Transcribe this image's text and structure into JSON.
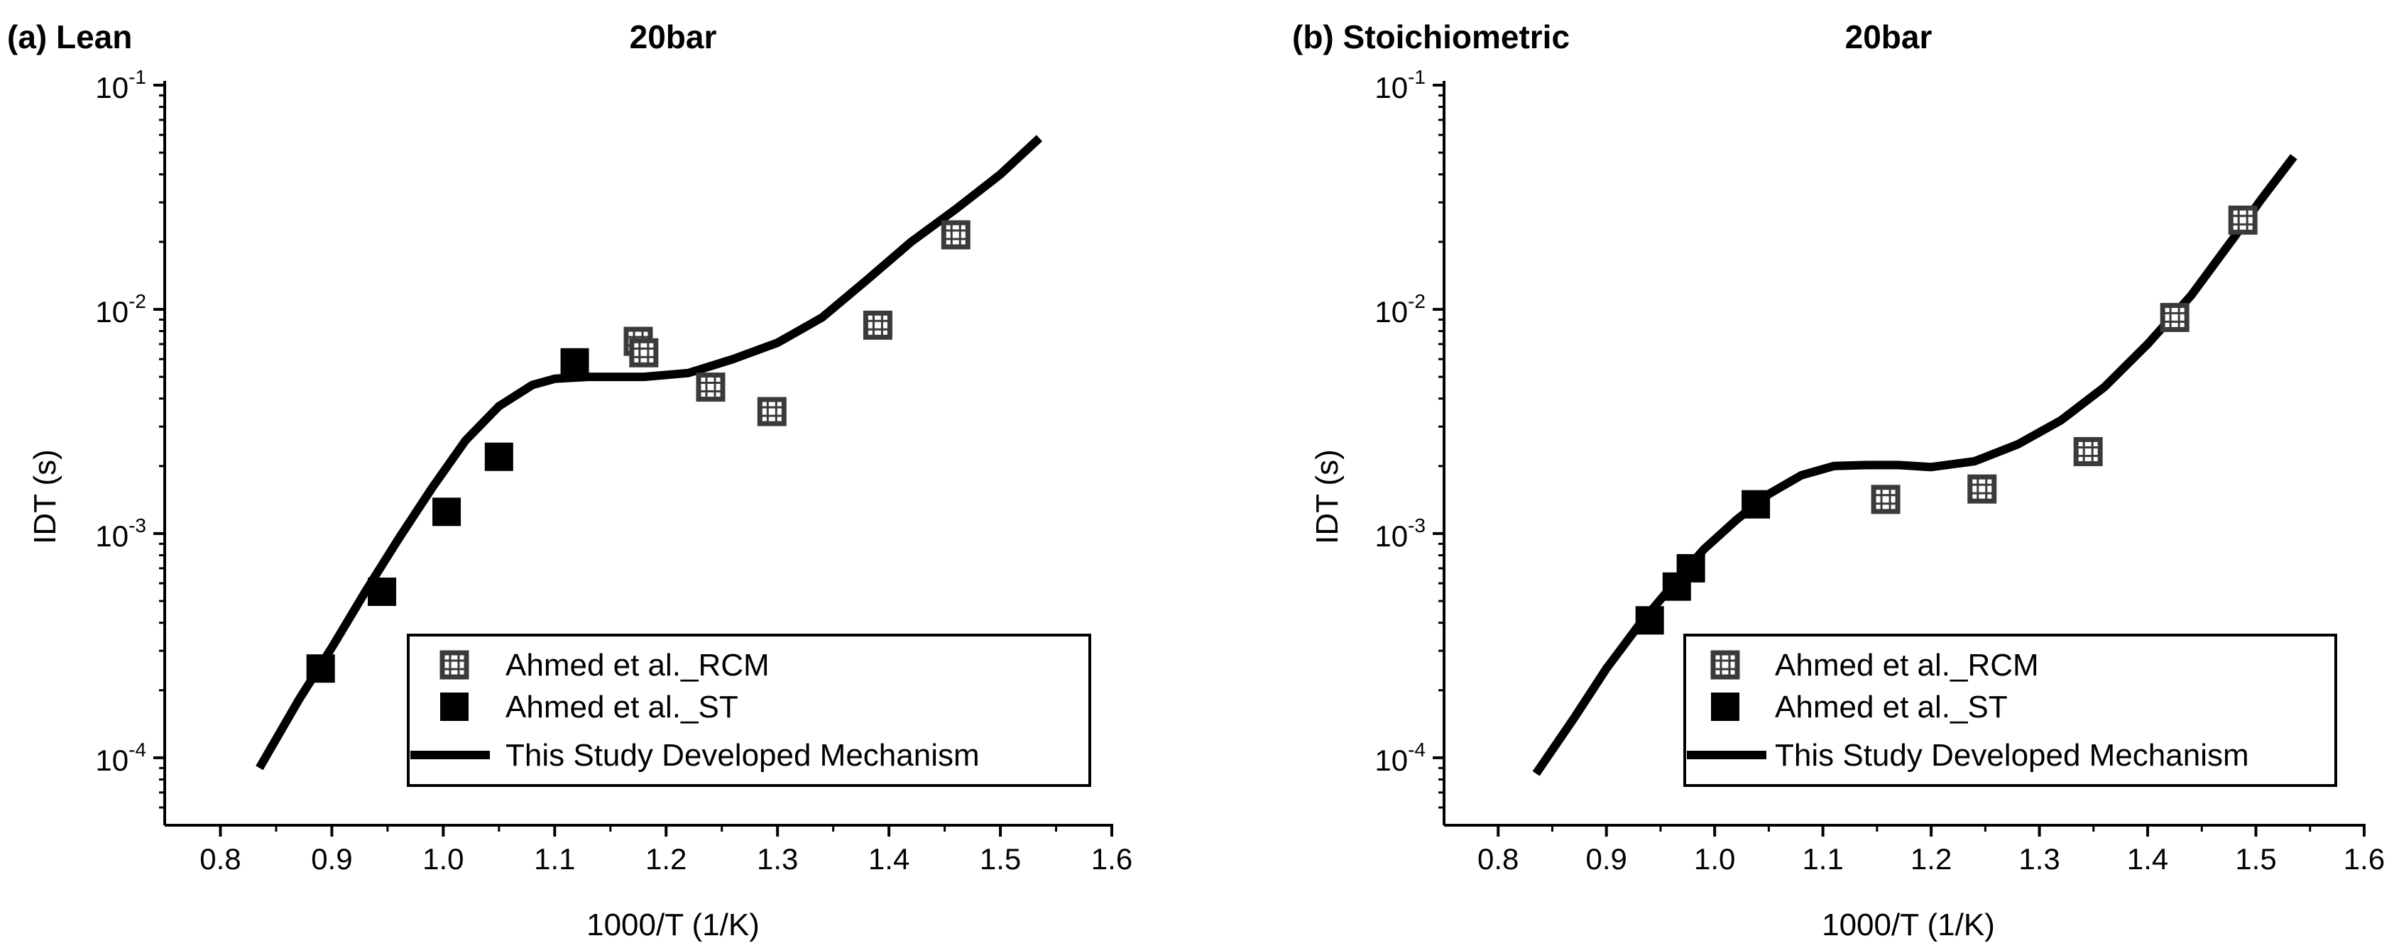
{
  "chart_data": [
    {
      "type": "scatter",
      "panel_label": "(a) Lean",
      "title": "20bar",
      "xlabel": "1000/T (1/K)",
      "ylabel": "IDT (s)",
      "xlim": [
        0.75,
        1.6
      ],
      "ylim": [
        5e-05,
        0.1
      ],
      "yscale": "log",
      "xticks": [
        "0.8",
        "0.9",
        "1.0",
        "1.1",
        "1.2",
        "1.3",
        "1.4",
        "1.5",
        "1.6"
      ],
      "yticks": [
        {
          "base": "10",
          "exp": "-1"
        },
        {
          "base": "10",
          "exp": "-2"
        },
        {
          "base": "10",
          "exp": "-3"
        },
        {
          "base": "10",
          "exp": "-4"
        }
      ],
      "legend_position": "bottom-right",
      "series": [
        {
          "name": "Ahmed et al._RCM",
          "marker": "square-hatched",
          "x": [
            1.175,
            1.18,
            1.24,
            1.295,
            1.39,
            1.46
          ],
          "y": [
            0.0072,
            0.0064,
            0.0045,
            0.0035,
            0.0085,
            0.0215
          ]
        },
        {
          "name": "Ahmed et al._ST",
          "marker": "square-filled",
          "x": [
            0.89,
            0.945,
            1.003,
            1.05,
            1.118
          ],
          "y": [
            0.00025,
            0.00055,
            0.00125,
            0.0022,
            0.0058
          ]
        },
        {
          "name": "This Study Developed Mechanism",
          "marker": "line",
          "x": [
            0.835,
            0.87,
            0.9,
            0.93,
            0.96,
            0.99,
            1.02,
            1.05,
            1.08,
            1.1,
            1.13,
            1.18,
            1.22,
            1.26,
            1.3,
            1.34,
            1.38,
            1.42,
            1.46,
            1.5,
            1.535
          ],
          "y": [
            9e-05,
            0.00018,
            0.00031,
            0.00055,
            0.00095,
            0.0016,
            0.0026,
            0.0037,
            0.0046,
            0.0049,
            0.005,
            0.005,
            0.0052,
            0.006,
            0.0071,
            0.0092,
            0.0135,
            0.02,
            0.028,
            0.04,
            0.058
          ]
        }
      ]
    },
    {
      "type": "scatter",
      "panel_label": "(b) Stoichiometric",
      "title": "20bar",
      "xlabel": "1000/T (1/K)",
      "ylabel": "IDT (s)",
      "xlim": [
        0.75,
        1.6
      ],
      "ylim": [
        5e-05,
        0.1
      ],
      "yscale": "log",
      "xticks": [
        "0.8",
        "0.9",
        "1.0",
        "1.1",
        "1.2",
        "1.3",
        "1.4",
        "1.5",
        "1.6"
      ],
      "yticks": [
        {
          "base": "10",
          "exp": "-1"
        },
        {
          "base": "10",
          "exp": "-2"
        },
        {
          "base": "10",
          "exp": "-3"
        },
        {
          "base": "10",
          "exp": "-4"
        }
      ],
      "legend_position": "bottom-right",
      "series": [
        {
          "name": "Ahmed et al._RCM",
          "marker": "square-hatched",
          "x": [
            1.158,
            1.247,
            1.345,
            1.425,
            1.488
          ],
          "y": [
            0.00142,
            0.00158,
            0.00232,
            0.0092,
            0.025
          ]
        },
        {
          "name": "Ahmed et al._ST",
          "marker": "square-filled",
          "x": [
            0.94,
            0.965,
            0.978,
            1.038
          ],
          "y": [
            0.00041,
            0.00058,
            0.0007,
            0.00135
          ]
        },
        {
          "name": "This Study Developed Mechanism",
          "marker": "line",
          "x": [
            0.835,
            0.87,
            0.9,
            0.93,
            0.96,
            0.99,
            1.02,
            1.05,
            1.08,
            1.11,
            1.14,
            1.17,
            1.2,
            1.24,
            1.28,
            1.32,
            1.36,
            1.4,
            1.44,
            1.48,
            1.505,
            1.535
          ],
          "y": [
            8.5e-05,
            0.00015,
            0.00025,
            0.00039,
            0.00058,
            0.00085,
            0.00115,
            0.0015,
            0.00182,
            0.002,
            0.00202,
            0.00202,
            0.00198,
            0.0021,
            0.0025,
            0.0032,
            0.0045,
            0.007,
            0.0115,
            0.021,
            0.031,
            0.048
          ]
        }
      ]
    }
  ]
}
